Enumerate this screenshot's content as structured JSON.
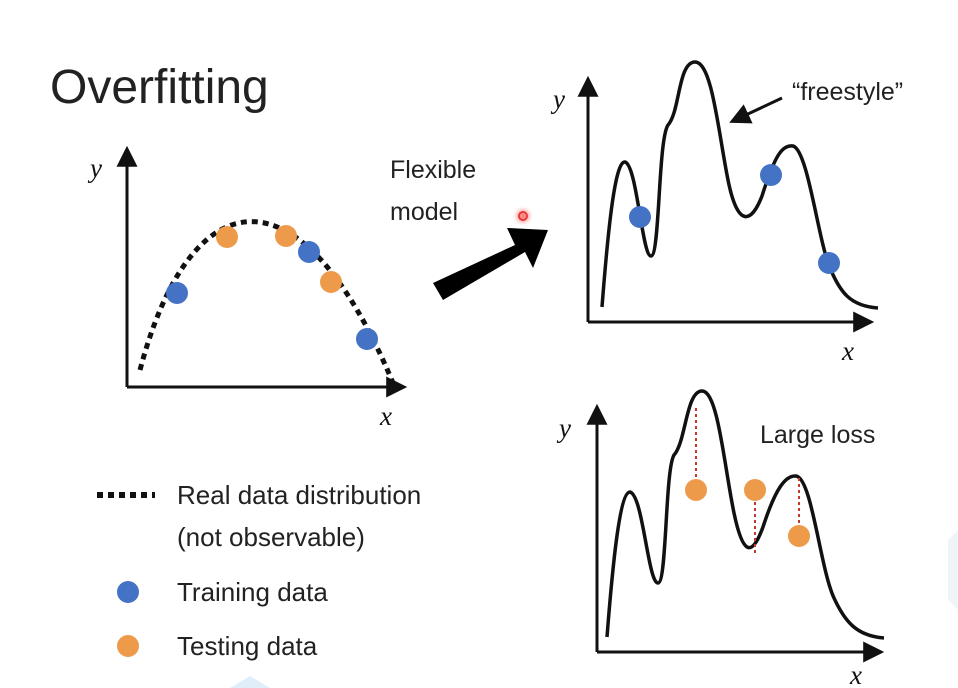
{
  "slide": {
    "title": "Overfitting",
    "arrow_label_line1": "Flexible",
    "arrow_label_line2": "model",
    "freestyle_label": "“freestyle”",
    "large_loss_label": "Large loss"
  },
  "axes": {
    "x_label": "x",
    "y_label": "y"
  },
  "legend": {
    "real_line1": "Real data distribution",
    "real_line2": "(not observable)",
    "training": "Training data",
    "testing": "Testing data"
  },
  "colors": {
    "training": "#4472c4",
    "testing": "#ed9b4a",
    "curve": "#111111",
    "loss_line": "#c0392b",
    "pointer": "#e53935"
  },
  "icons": {
    "pointer": "laser-pointer-icon",
    "arrow": "big-arrow-icon"
  }
}
